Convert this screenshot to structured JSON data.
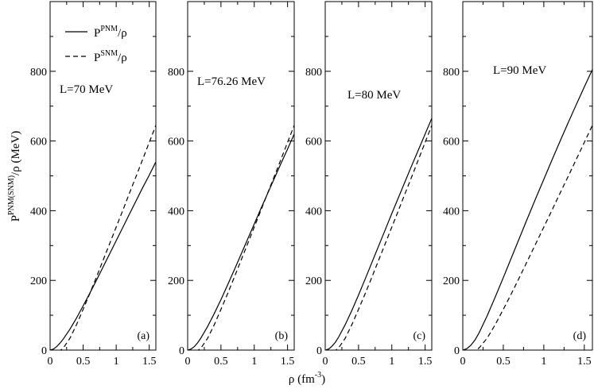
{
  "chart_data": [
    {
      "type": "line",
      "panel_label": "(a)",
      "annotation": "L=70 MeV",
      "xlim": [
        0,
        1.6
      ],
      "ylim": [
        0,
        1000
      ],
      "x_ticks": [
        0,
        0.5,
        1,
        1.5
      ],
      "x_tick_labels": [
        "0",
        "0.5",
        "1",
        "1.5"
      ],
      "y_ticks": [
        0,
        200,
        400,
        600,
        800
      ],
      "y_tick_labels": [
        "0",
        "200",
        "400",
        "600",
        "800"
      ],
      "series": [
        {
          "name": "P^PNM/ρ",
          "style": "solid",
          "x": [
            0,
            0.05,
            0.1,
            0.15,
            0.2,
            0.3,
            0.4,
            0.5,
            0.6,
            0.7,
            0.8,
            0.9,
            1.0,
            1.1,
            1.2,
            1.3,
            1.4,
            1.5,
            1.6
          ],
          "y": [
            0,
            3,
            10,
            20,
            32,
            60,
            92,
            127,
            163,
            200,
            238,
            276,
            314,
            352,
            390,
            428,
            466,
            502,
            540
          ]
        },
        {
          "name": "P^SNM/ρ",
          "style": "dashed",
          "x": [
            0,
            0.1,
            0.16,
            0.2,
            0.3,
            0.4,
            0.5,
            0.6,
            0.7,
            0.8,
            0.9,
            1.0,
            1.1,
            1.2,
            1.3,
            1.4,
            1.5,
            1.6
          ],
          "y": [
            0,
            -5,
            0,
            6,
            34,
            73,
            117,
            162,
            209,
            257,
            305,
            353,
            401,
            450,
            498,
            547,
            596,
            645
          ]
        }
      ]
    },
    {
      "type": "line",
      "panel_label": "(b)",
      "annotation": "L=76.26 MeV",
      "xlim": [
        0,
        1.6
      ],
      "ylim": [
        0,
        1000
      ],
      "x_ticks": [
        0,
        0.5,
        1,
        1.5
      ],
      "x_tick_labels": [
        "0",
        "0.5",
        "1",
        "1.5"
      ],
      "y_ticks": [
        0,
        200,
        400,
        600,
        800
      ],
      "y_tick_labels": [
        "0",
        "200",
        "400",
        "600",
        "800"
      ],
      "series": [
        {
          "name": "P^PNM/ρ",
          "style": "solid",
          "x": [
            0,
            0.05,
            0.1,
            0.15,
            0.2,
            0.3,
            0.4,
            0.5,
            0.6,
            0.7,
            0.8,
            0.9,
            1.0,
            1.1,
            1.2,
            1.3,
            1.4,
            1.5,
            1.6
          ],
          "y": [
            0,
            3,
            10,
            21,
            35,
            68,
            105,
            145,
            187,
            230,
            274,
            318,
            362,
            406,
            449,
            492,
            535,
            577,
            620
          ]
        },
        {
          "name": "P^SNM/ρ",
          "style": "dashed",
          "x": [
            0,
            0.1,
            0.16,
            0.2,
            0.3,
            0.4,
            0.5,
            0.6,
            0.7,
            0.8,
            0.9,
            1.0,
            1.1,
            1.2,
            1.3,
            1.4,
            1.5,
            1.6
          ],
          "y": [
            0,
            -5,
            0,
            6,
            34,
            73,
            117,
            162,
            209,
            257,
            305,
            353,
            401,
            450,
            498,
            547,
            596,
            645
          ]
        }
      ]
    },
    {
      "type": "line",
      "panel_label": "(c)",
      "annotation": "L=80 MeV",
      "xlim": [
        0,
        1.6
      ],
      "ylim": [
        0,
        1000
      ],
      "x_ticks": [
        0,
        0.5,
        1,
        1.5
      ],
      "x_tick_labels": [
        "0",
        "0.5",
        "1",
        "1.5"
      ],
      "y_ticks": [
        0,
        200,
        400,
        600,
        800
      ],
      "y_tick_labels": [
        "0",
        "200",
        "400",
        "600",
        "800"
      ],
      "series": [
        {
          "name": "P^PNM/ρ",
          "style": "solid",
          "x": [
            0,
            0.05,
            0.1,
            0.15,
            0.2,
            0.3,
            0.4,
            0.5,
            0.6,
            0.7,
            0.8,
            0.9,
            1.0,
            1.1,
            1.2,
            1.3,
            1.4,
            1.5,
            1.6
          ],
          "y": [
            0,
            3,
            11,
            22,
            37,
            73,
            114,
            158,
            204,
            251,
            298,
            345,
            392,
            438,
            484,
            530,
            575,
            620,
            665
          ]
        },
        {
          "name": "P^SNM/ρ",
          "style": "dashed",
          "x": [
            0,
            0.1,
            0.16,
            0.2,
            0.3,
            0.4,
            0.5,
            0.6,
            0.7,
            0.8,
            0.9,
            1.0,
            1.1,
            1.2,
            1.3,
            1.4,
            1.5,
            1.6
          ],
          "y": [
            0,
            -5,
            0,
            6,
            34,
            73,
            117,
            162,
            209,
            257,
            305,
            353,
            401,
            450,
            498,
            547,
            596,
            645
          ]
        }
      ]
    },
    {
      "type": "line",
      "panel_label": "(d)",
      "annotation": "L=90 MeV",
      "xlim": [
        0,
        1.6
      ],
      "ylim": [
        0,
        1000
      ],
      "x_ticks": [
        0,
        0.5,
        1,
        1.5
      ],
      "x_tick_labels": [
        "0",
        "0.5",
        "1",
        "1.5"
      ],
      "y_ticks": [
        0,
        200,
        400,
        600,
        800
      ],
      "y_tick_labels": [
        "0",
        "200",
        "400",
        "600",
        "800"
      ],
      "series": [
        {
          "name": "P^PNM/ρ",
          "style": "solid",
          "x": [
            0,
            0.05,
            0.1,
            0.15,
            0.2,
            0.3,
            0.4,
            0.5,
            0.6,
            0.7,
            0.8,
            0.9,
            1.0,
            1.1,
            1.2,
            1.3,
            1.4,
            1.5,
            1.6
          ],
          "y": [
            0,
            4,
            14,
            29,
            49,
            98,
            152,
            208,
            265,
            322,
            379,
            435,
            490,
            545,
            599,
            652,
            704,
            755,
            805
          ]
        },
        {
          "name": "P^SNM/ρ",
          "style": "dashed",
          "x": [
            0,
            0.1,
            0.16,
            0.2,
            0.3,
            0.4,
            0.5,
            0.6,
            0.7,
            0.8,
            0.9,
            1.0,
            1.1,
            1.2,
            1.3,
            1.4,
            1.5,
            1.6
          ],
          "y": [
            0,
            -5,
            0,
            6,
            34,
            73,
            117,
            162,
            209,
            257,
            305,
            353,
            401,
            450,
            498,
            547,
            596,
            645
          ]
        }
      ]
    }
  ],
  "legend": {
    "pnm_main": "P",
    "pnm_sup": "PNM",
    "pnm_tail": "/ρ",
    "snm_main": "P",
    "snm_sup": "SNM",
    "snm_tail": "/ρ"
  },
  "ylabel": {
    "main": "P",
    "sup": "PNM(SNM)",
    "tail": "/ρ (MeV)"
  },
  "xlabel": {
    "main": "ρ (fm",
    "sup": "-3",
    "tail": ")"
  }
}
